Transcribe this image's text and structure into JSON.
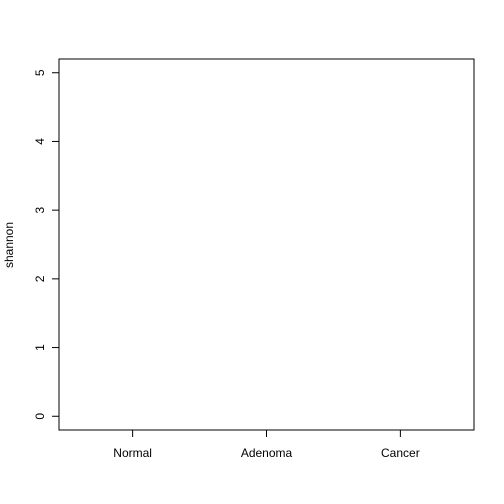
{
  "chart_data": {
    "type": "scatter",
    "title": "",
    "xlabel": "",
    "ylabel": "shannon",
    "categories": [
      "Normal",
      "Adenoma",
      "Cancer"
    ],
    "ylim": [
      -0.2,
      5.2
    ],
    "yticks": [
      "0",
      "1",
      "2",
      "3",
      "4",
      "5"
    ],
    "series": [],
    "grid": false,
    "legend": "none",
    "colors": {
      "axis": "#000000",
      "background": "#ffffff"
    }
  }
}
